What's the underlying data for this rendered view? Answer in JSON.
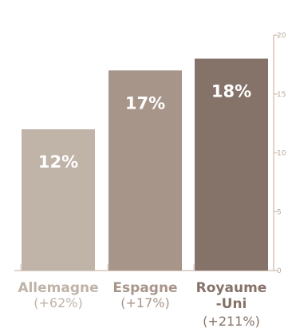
{
  "chart_data": {
    "type": "bar",
    "categories": [
      "Allemagne",
      "Espagne",
      "Royaume -Uni"
    ],
    "category_lines": [
      [
        "Allemagne"
      ],
      [
        "Espagne"
      ],
      [
        "Royaume",
        "-Uni"
      ]
    ],
    "changes": [
      "(+62%)",
      "(+17%)",
      "(+211%)"
    ],
    "values": [
      12,
      17,
      18
    ],
    "value_labels": [
      "12%",
      "17%",
      "18%"
    ],
    "ylim": [
      0,
      20
    ],
    "y_ticks": [
      0,
      5,
      10,
      15,
      20
    ],
    "y_axis_position": "right",
    "grid": false,
    "colors": {
      "bars": [
        "#c0b3a7",
        "#a8958a",
        "#857268"
      ],
      "category_text": [
        "#c0b3a7",
        "#a8958a",
        "#857268"
      ],
      "value_label": "#ffffff",
      "axis": "#d5c6ba",
      "tick_label": "#b8a99d"
    }
  }
}
